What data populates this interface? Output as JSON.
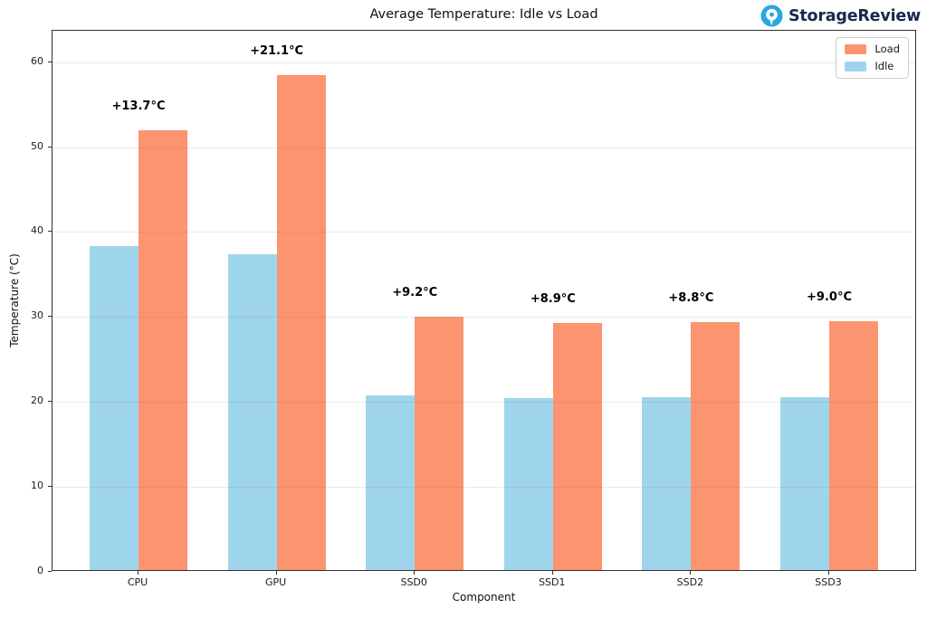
{
  "logo": {
    "text": "StorageReview",
    "icon_color": "#2aa7e0",
    "text_color": "#16294c"
  },
  "chart_data": {
    "type": "bar",
    "title": "Average Temperature: Idle vs Load",
    "xlabel": "Component",
    "ylabel": "Temperature (°C)",
    "categories": [
      "CPU",
      "GPU",
      "SSD0",
      "SSD1",
      "SSD2",
      "SSD3"
    ],
    "series": [
      {
        "name": "Load",
        "color": "#fc9470",
        "values": [
          51.8,
          58.3,
          29.8,
          29.1,
          29.2,
          29.3
        ]
      },
      {
        "name": "Idle",
        "color": "#9fd5ec",
        "values": [
          38.1,
          37.2,
          20.6,
          20.2,
          20.4,
          20.3
        ]
      }
    ],
    "annotations": [
      "+13.7°C",
      "+21.1°C",
      "+9.2°C",
      "+8.9°C",
      "+8.8°C",
      "+9.0°C"
    ],
    "yticks": [
      0,
      10,
      20,
      30,
      40,
      50,
      60
    ],
    "ylim": [
      0,
      63.7
    ],
    "grid": true,
    "legend_position": "upper right"
  }
}
